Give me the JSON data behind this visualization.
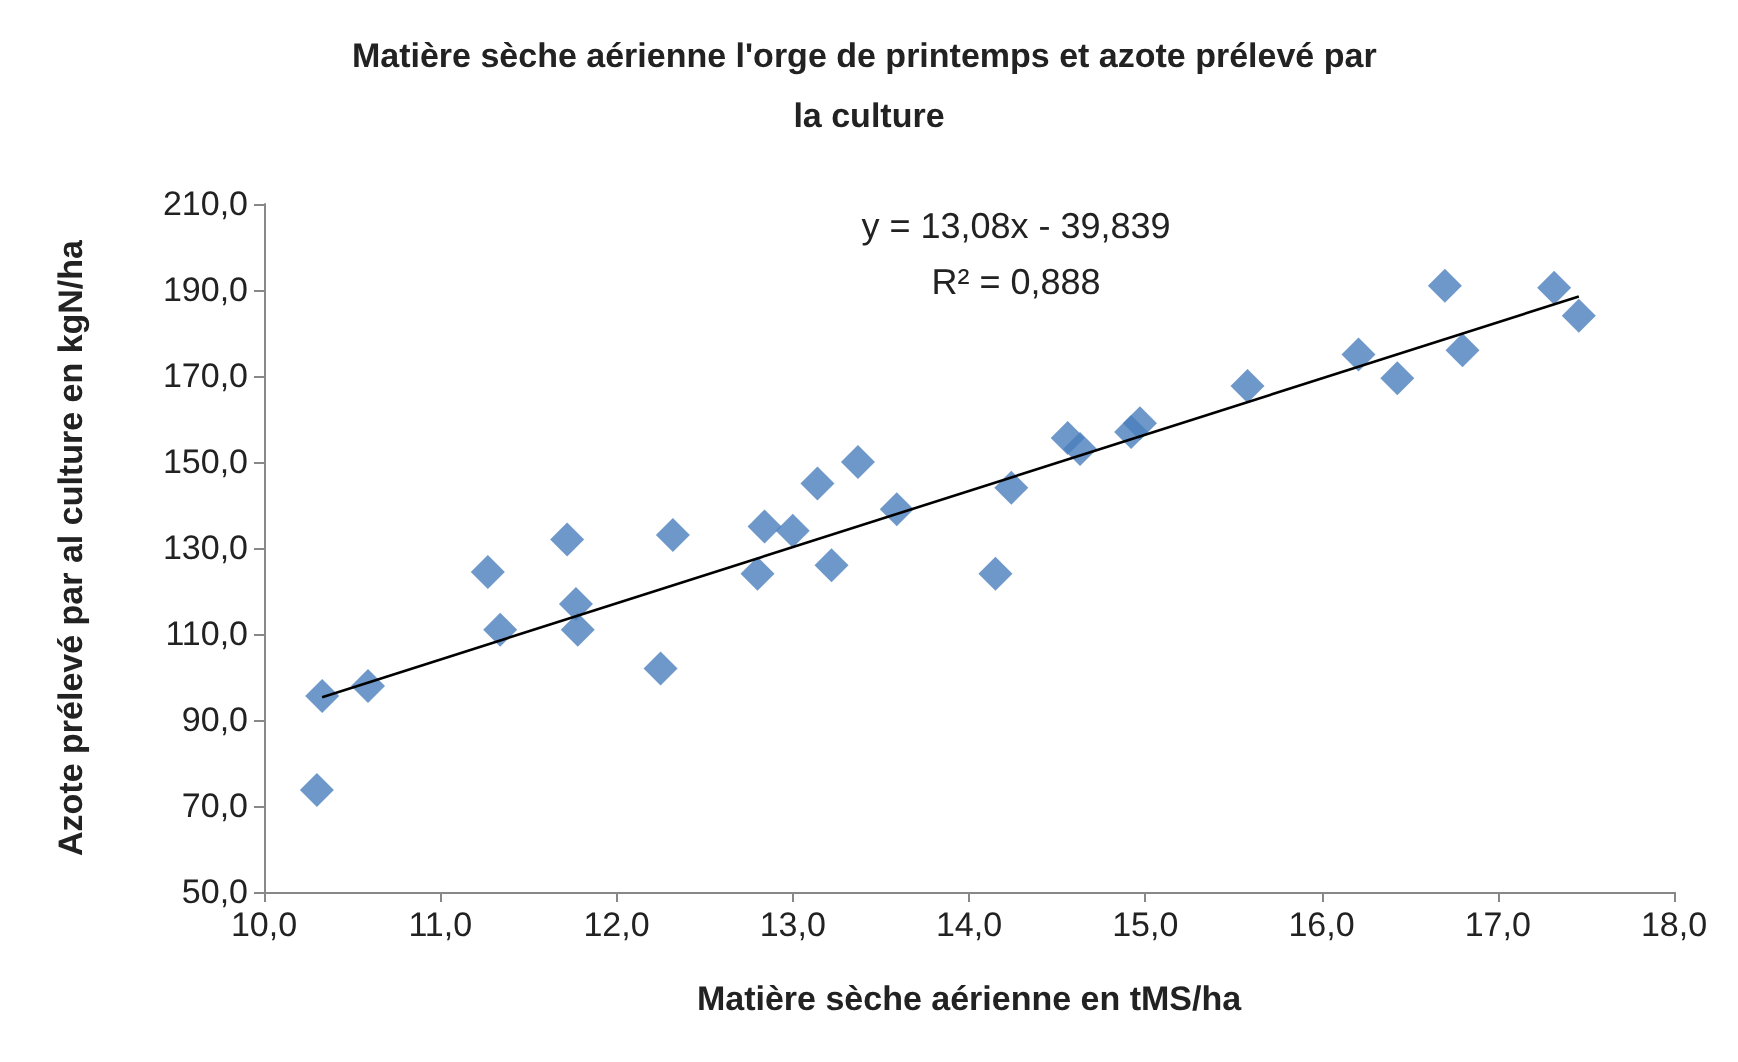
{
  "chart_data": {
    "type": "scatter",
    "title": "Matière sèche aérienne l'orge de printemps et azote prélevé par la culture",
    "xlabel": "Matière sèche aérienne en tMS/ha",
    "ylabel": "Azote prélevé par al culture en kgN/ha",
    "annotations": [
      "y = 13,08x - 39,839",
      "R² = 0,888"
    ],
    "marker": "diamond",
    "grid": false,
    "xlim": [
      10,
      18
    ],
    "xticks": [
      {
        "value": 10,
        "label": "10,0"
      },
      {
        "value": 11,
        "label": "11,0"
      },
      {
        "value": 12,
        "label": "12,0"
      },
      {
        "value": 13,
        "label": "13,0"
      },
      {
        "value": 14,
        "label": "14,0"
      },
      {
        "value": 15,
        "label": "15,0"
      },
      {
        "value": 16,
        "label": "16,0"
      },
      {
        "value": 17,
        "label": "17,0"
      },
      {
        "value": 18,
        "label": "18,0"
      }
    ],
    "ylim": [
      50,
      210
    ],
    "yticks": [
      {
        "value": 50,
        "label": "50,0"
      },
      {
        "value": 70,
        "label": "70,0"
      },
      {
        "value": 90,
        "label": "90,0"
      },
      {
        "value": 110,
        "label": "110,0"
      },
      {
        "value": 130,
        "label": "130,0"
      },
      {
        "value": 150,
        "label": "150,0"
      },
      {
        "value": 170,
        "label": "170,0"
      },
      {
        "value": 190,
        "label": "190,0"
      },
      {
        "value": 210,
        "label": "210,0"
      }
    ],
    "series": [
      {
        "color": "#4a7ebb",
        "x": [
          10.3,
          10.33,
          10.59,
          11.27,
          11.34,
          11.72,
          11.77,
          11.78,
          12.25,
          12.32,
          12.8,
          12.84,
          13.0,
          13.14,
          13.22,
          13.37,
          13.59,
          14.15,
          14.24,
          14.56,
          14.63,
          14.92,
          14.97,
          15.58,
          16.21,
          16.43,
          16.7,
          16.8,
          17.32,
          17.46
        ],
        "values": [
          73.7,
          95.6,
          97.9,
          124.4,
          111,
          132,
          117,
          111,
          102,
          133,
          124,
          135,
          134,
          145,
          126,
          150,
          139,
          124,
          144,
          155.6,
          153,
          157,
          159,
          167.7,
          175,
          169.5,
          191,
          176,
          190.5,
          184
        ]
      },
      {
        "type": "line",
        "color": "#000000",
        "marker": "none",
        "x": [
          10.33,
          17.46
        ],
        "values": [
          95.3,
          188.5
        ]
      }
    ]
  }
}
